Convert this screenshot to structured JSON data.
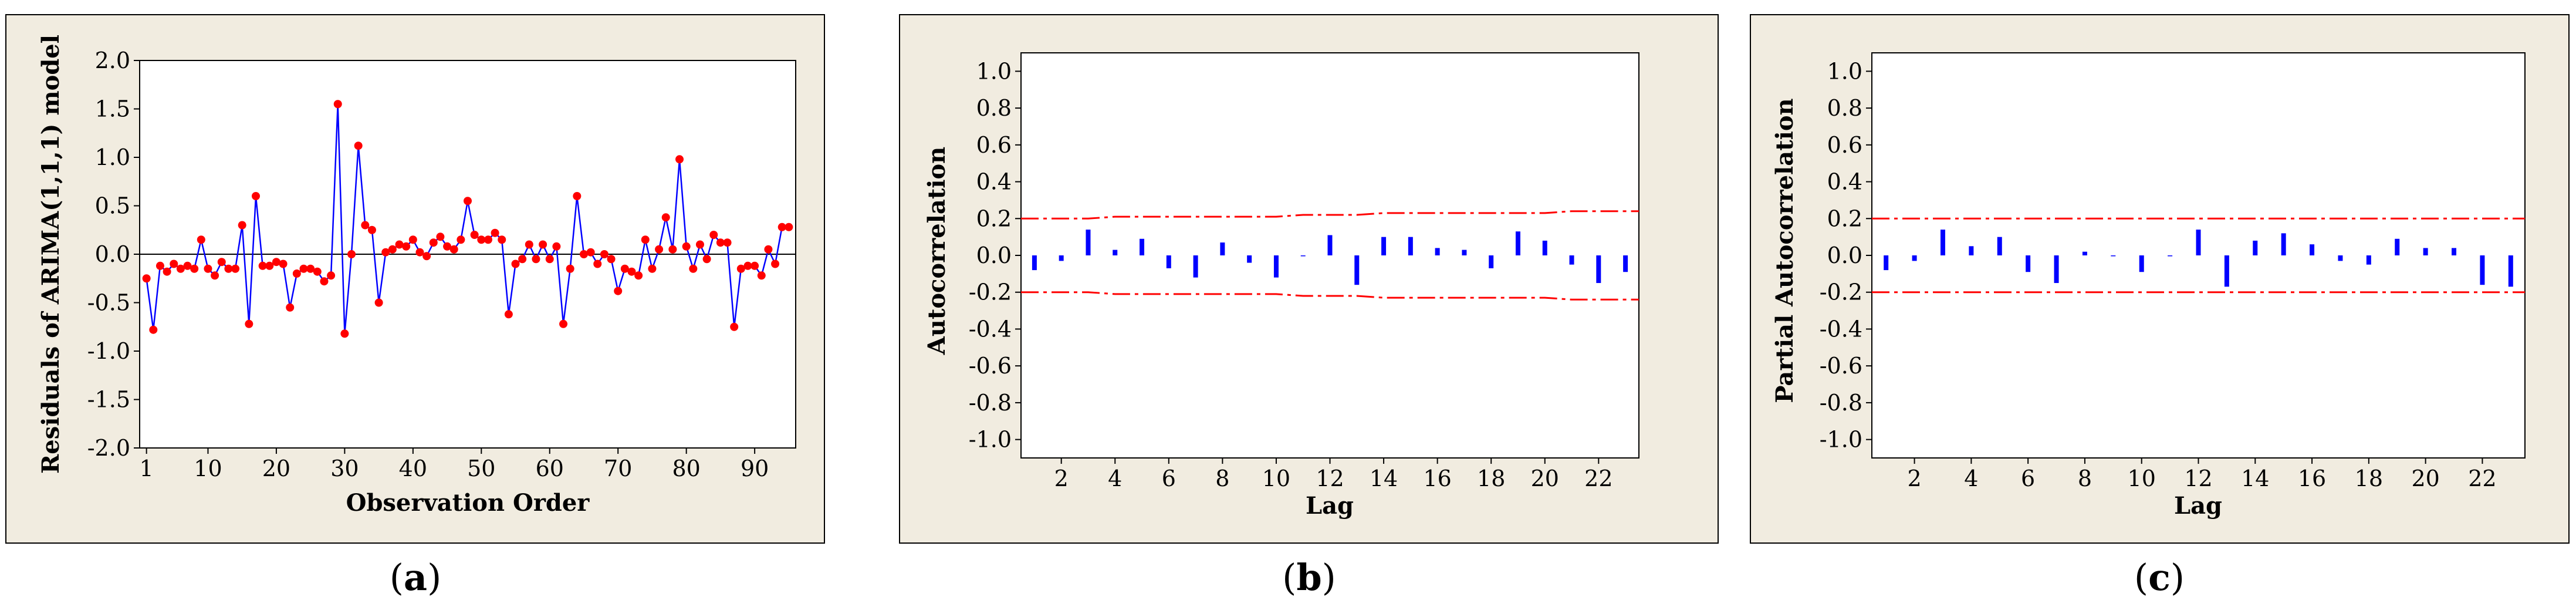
{
  "chart_data": [
    {
      "type": "line",
      "caption": "a",
      "xlabel": "Observation Order",
      "ylabel": "Residuals of ARIMA(1,1,1) model",
      "xlim": [
        0,
        96
      ],
      "ylim": [
        -2.0,
        2.0
      ],
      "xticks": [
        1,
        10,
        20,
        30,
        40,
        50,
        60,
        70,
        80,
        90
      ],
      "yticks": [
        2.0,
        1.5,
        1.0,
        0.5,
        0.0,
        -0.5,
        -1.0,
        -1.5,
        -2.0
      ],
      "ytick_labels": [
        "2.0",
        "1.5",
        "1.0",
        "0.5",
        "0.0",
        "-0.5",
        "-1.0",
        "-1.5",
        "-2.0"
      ],
      "reference_line": 0.0,
      "line_color": "#0000ff",
      "marker_color": "#ff0000",
      "x": [
        1,
        2,
        3,
        4,
        5,
        6,
        7,
        8,
        9,
        10,
        11,
        12,
        13,
        14,
        15,
        16,
        17,
        18,
        19,
        20,
        21,
        22,
        23,
        24,
        25,
        26,
        27,
        28,
        29,
        30,
        31,
        32,
        33,
        34,
        35,
        36,
        37,
        38,
        39,
        40,
        41,
        42,
        43,
        44,
        45,
        46,
        47,
        48,
        49,
        50,
        51,
        52,
        53,
        54,
        55,
        56,
        57,
        58,
        59,
        60,
        61,
        62,
        63,
        64,
        65,
        66,
        67,
        68,
        69,
        70,
        71,
        72,
        73,
        74,
        75,
        76,
        77,
        78,
        79,
        80,
        81,
        82,
        83,
        84,
        85,
        86,
        87,
        88,
        89,
        90,
        91,
        92,
        93,
        94,
        95
      ],
      "y": [
        -0.25,
        -0.78,
        -0.12,
        -0.18,
        -0.1,
        -0.15,
        -0.12,
        -0.15,
        0.15,
        -0.15,
        -0.22,
        -0.08,
        -0.15,
        -0.15,
        0.3,
        -0.72,
        0.6,
        -0.12,
        -0.12,
        -0.08,
        -0.1,
        -0.55,
        -0.2,
        -0.15,
        -0.15,
        -0.18,
        -0.28,
        -0.22,
        1.55,
        -0.82,
        0.0,
        1.12,
        0.3,
        0.25,
        -0.5,
        0.02,
        0.05,
        0.1,
        0.08,
        0.15,
        0.02,
        -0.02,
        0.12,
        0.18,
        0.08,
        0.05,
        0.15,
        0.55,
        0.2,
        0.15,
        0.15,
        0.22,
        0.15,
        -0.62,
        -0.1,
        -0.05,
        0.1,
        -0.05,
        0.1,
        -0.05,
        0.08,
        -0.72,
        -0.15,
        0.6,
        0.0,
        0.02,
        -0.1,
        0.0,
        -0.05,
        -0.38,
        -0.15,
        -0.18,
        -0.22,
        0.15,
        -0.15,
        0.05,
        0.38,
        0.05,
        0.98,
        0.08,
        -0.15,
        0.1,
        -0.05,
        0.2,
        0.12,
        0.12,
        -0.75,
        -0.15,
        -0.12,
        -0.12,
        -0.22,
        0.05,
        -0.1,
        0.28,
        0.28
      ]
    },
    {
      "type": "bar",
      "caption": "b",
      "xlabel": "Lag",
      "ylabel": "Autocorrelation",
      "xlim": [
        0.5,
        23.5
      ],
      "ylim": [
        -1.1,
        1.1
      ],
      "xticks": [
        2,
        4,
        6,
        8,
        10,
        12,
        14,
        16,
        18,
        20,
        22
      ],
      "yticks": [
        1.0,
        0.8,
        0.6,
        0.4,
        0.2,
        0.0,
        -0.2,
        -0.4,
        -0.6,
        -0.8,
        -1.0
      ],
      "ytick_labels": [
        "1.0",
        "0.8",
        "0.6",
        "0.4",
        "0.2",
        "0.0",
        "-0.2",
        "-0.4",
        "-0.6",
        "-0.8",
        "-1.0"
      ],
      "lags": [
        1,
        2,
        3,
        4,
        5,
        6,
        7,
        8,
        9,
        10,
        11,
        12,
        13,
        14,
        15,
        16,
        17,
        18,
        19,
        20,
        21,
        22,
        23
      ],
      "values": [
        -0.08,
        -0.03,
        0.14,
        0.03,
        0.09,
        -0.07,
        -0.12,
        0.07,
        -0.04,
        -0.12,
        0.0,
        0.11,
        -0.16,
        0.1,
        0.1,
        0.04,
        0.03,
        -0.07,
        0.13,
        0.08,
        -0.05,
        -0.15,
        -0.09
      ],
      "significance_limits": {
        "upper": [
          0.2,
          0.2,
          0.2,
          0.21,
          0.21,
          0.21,
          0.21,
          0.21,
          0.21,
          0.21,
          0.22,
          0.22,
          0.22,
          0.23,
          0.23,
          0.23,
          0.23,
          0.23,
          0.23,
          0.23,
          0.24,
          0.24,
          0.24
        ],
        "lower": [
          -0.2,
          -0.2,
          -0.2,
          -0.21,
          -0.21,
          -0.21,
          -0.21,
          -0.21,
          -0.21,
          -0.21,
          -0.22,
          -0.22,
          -0.22,
          -0.23,
          -0.23,
          -0.23,
          -0.23,
          -0.23,
          -0.23,
          -0.23,
          -0.24,
          -0.24,
          -0.24
        ]
      },
      "bar_color": "#0000ff",
      "limit_color": "#ff0000"
    },
    {
      "type": "bar",
      "caption": "c",
      "xlabel": "Lag",
      "ylabel": "Partial Autocorrelation",
      "xlim": [
        0.5,
        23.5
      ],
      "ylim": [
        -1.1,
        1.1
      ],
      "xticks": [
        2,
        4,
        6,
        8,
        10,
        12,
        14,
        16,
        18,
        20,
        22
      ],
      "yticks": [
        1.0,
        0.8,
        0.6,
        0.4,
        0.2,
        0.0,
        -0.2,
        -0.4,
        -0.6,
        -0.8,
        -1.0
      ],
      "ytick_labels": [
        "1.0",
        "0.8",
        "0.6",
        "0.4",
        "0.2",
        "0.0",
        "-0.2",
        "-0.4",
        "-0.6",
        "-0.8",
        "-1.0"
      ],
      "lags": [
        1,
        2,
        3,
        4,
        5,
        6,
        7,
        8,
        9,
        10,
        11,
        12,
        13,
        14,
        15,
        16,
        17,
        18,
        19,
        20,
        21,
        22,
        23
      ],
      "values": [
        -0.08,
        -0.03,
        0.14,
        0.05,
        0.1,
        -0.09,
        -0.15,
        0.02,
        0.0,
        -0.09,
        0.0,
        0.14,
        -0.17,
        0.08,
        0.12,
        0.06,
        -0.03,
        -0.05,
        0.09,
        0.04,
        0.04,
        -0.16,
        -0.17
      ],
      "significance_limits": {
        "upper": [
          0.2,
          0.2,
          0.2,
          0.2,
          0.2,
          0.2,
          0.2,
          0.2,
          0.2,
          0.2,
          0.2,
          0.2,
          0.2,
          0.2,
          0.2,
          0.2,
          0.2,
          0.2,
          0.2,
          0.2,
          0.2,
          0.2,
          0.2
        ],
        "lower": [
          -0.2,
          -0.2,
          -0.2,
          -0.2,
          -0.2,
          -0.2,
          -0.2,
          -0.2,
          -0.2,
          -0.2,
          -0.2,
          -0.2,
          -0.2,
          -0.2,
          -0.2,
          -0.2,
          -0.2,
          -0.2,
          -0.2,
          -0.2,
          -0.2,
          -0.2,
          -0.2
        ]
      },
      "bar_color": "#0000ff",
      "limit_color": "#ff0000"
    }
  ]
}
